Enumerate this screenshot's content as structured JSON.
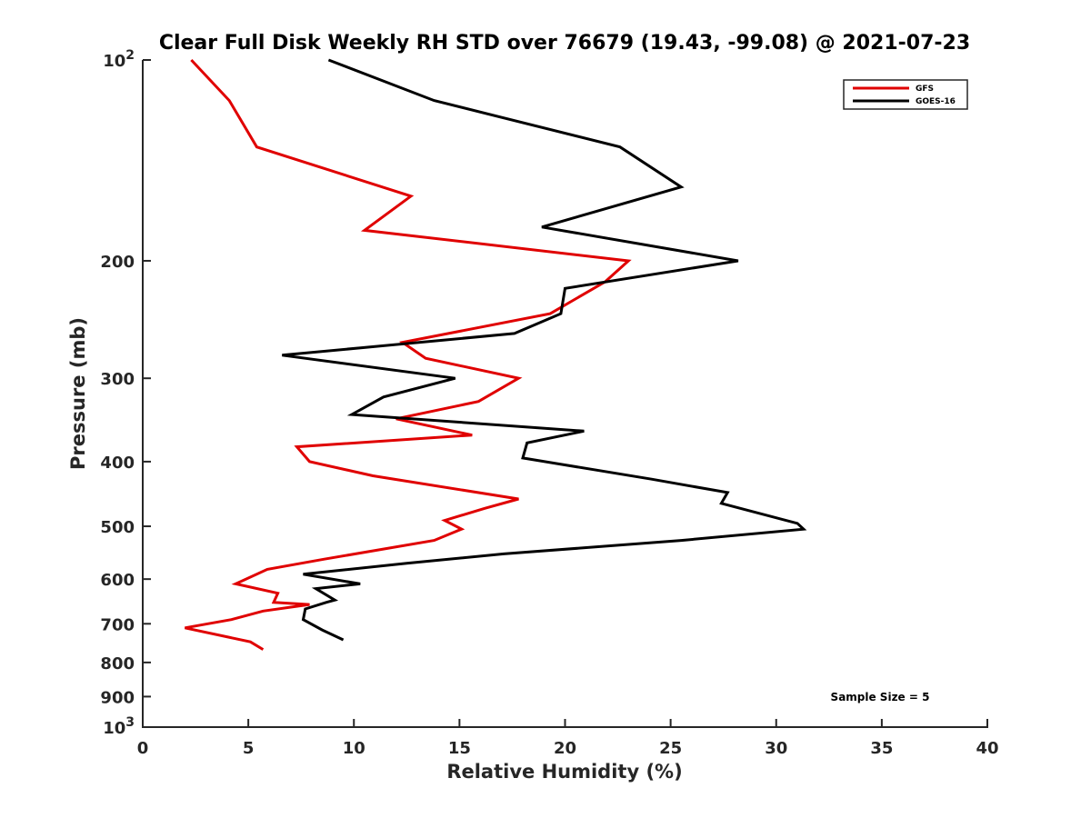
{
  "chart_data": {
    "type": "line",
    "title": "Clear Full Disk Weekly RH STD over 76679 (19.43, -99.08) @ 2021-07-23",
    "xlabel": "Relative Humidity (%)",
    "ylabel": "Pressure (mb)",
    "xlim": [
      0,
      40
    ],
    "ylim": [
      100,
      1000
    ],
    "y_scale": "log",
    "y_reversed": true,
    "grid": false,
    "legend_position": "top-right",
    "x_ticks": [
      0,
      5,
      10,
      15,
      20,
      25,
      30,
      35,
      40
    ],
    "x_tick_labels": [
      "0",
      "5",
      "10",
      "15",
      "20",
      "25",
      "30",
      "35",
      "40"
    ],
    "y_ticks": [
      {
        "value": 100,
        "base": "10",
        "exp": "2"
      },
      {
        "value": 200,
        "label": "200"
      },
      {
        "value": 300,
        "label": "300"
      },
      {
        "value": 400,
        "label": "400"
      },
      {
        "value": 500,
        "label": "500"
      },
      {
        "value": 600,
        "label": "600"
      },
      {
        "value": 700,
        "label": "700"
      },
      {
        "value": 800,
        "label": "800"
      },
      {
        "value": 900,
        "label": "900"
      },
      {
        "value": 1000,
        "base": "10",
        "exp": "3"
      }
    ],
    "series": [
      {
        "name": "GFS",
        "color": "#e00000",
        "points": [
          [
            2.3,
            100
          ],
          [
            4.1,
            115
          ],
          [
            5.4,
            135
          ],
          [
            12.7,
            160
          ],
          [
            10.5,
            180
          ],
          [
            23.0,
            200
          ],
          [
            21.9,
            215
          ],
          [
            19.3,
            240
          ],
          [
            12.3,
            265
          ],
          [
            13.4,
            280
          ],
          [
            17.8,
            300
          ],
          [
            15.9,
            325
          ],
          [
            12.0,
            345
          ],
          [
            15.6,
            365
          ],
          [
            7.3,
            380
          ],
          [
            7.9,
            400
          ],
          [
            10.9,
            420
          ],
          [
            17.8,
            455
          ],
          [
            16.2,
            470
          ],
          [
            14.3,
            490
          ],
          [
            15.1,
            505
          ],
          [
            13.8,
            525
          ],
          [
            8.6,
            560
          ],
          [
            5.9,
            580
          ],
          [
            4.4,
            610
          ],
          [
            6.4,
            630
          ],
          [
            6.2,
            650
          ],
          [
            7.9,
            655
          ],
          [
            5.7,
            670
          ],
          [
            4.2,
            690
          ],
          [
            2.0,
            710
          ],
          [
            5.1,
            745
          ],
          [
            5.7,
            765
          ]
        ]
      },
      {
        "name": "GOES-16",
        "color": "#000000",
        "points": [
          [
            8.8,
            100
          ],
          [
            13.8,
            115
          ],
          [
            22.6,
            135
          ],
          [
            25.5,
            155
          ],
          [
            18.9,
            178
          ],
          [
            28.2,
            200
          ],
          [
            20.0,
            220
          ],
          [
            19.8,
            240
          ],
          [
            17.6,
            257
          ],
          [
            6.6,
            277
          ],
          [
            14.8,
            300
          ],
          [
            11.4,
            320
          ],
          [
            9.9,
            340
          ],
          [
            20.9,
            360
          ],
          [
            18.2,
            375
          ],
          [
            18.0,
            395
          ],
          [
            24.1,
            425
          ],
          [
            27.7,
            445
          ],
          [
            27.4,
            462
          ],
          [
            31.0,
            495
          ],
          [
            31.3,
            505
          ],
          [
            25.5,
            525
          ],
          [
            17.1,
            550
          ],
          [
            12.5,
            568
          ],
          [
            7.6,
            590
          ],
          [
            10.3,
            610
          ],
          [
            8.2,
            620
          ],
          [
            9.1,
            645
          ],
          [
            8.7,
            650
          ],
          [
            7.7,
            665
          ],
          [
            7.6,
            690
          ],
          [
            8.5,
            715
          ],
          [
            9.5,
            740
          ]
        ]
      }
    ],
    "annotation": "Sample Size = 5"
  }
}
